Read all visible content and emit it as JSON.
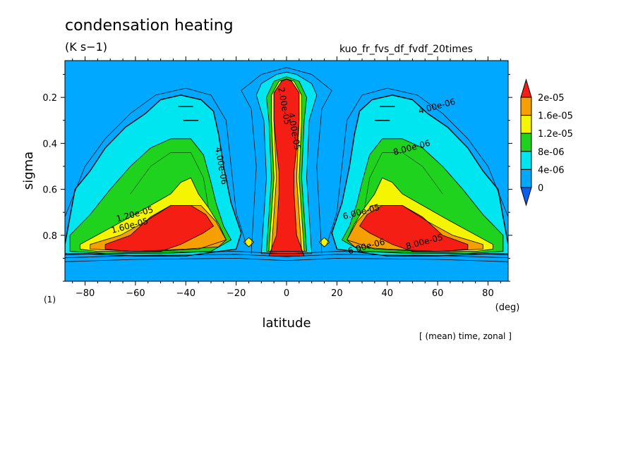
{
  "header": {
    "title": "condensation heating",
    "units": "(K s−1)",
    "run_name": "kuo_fr_fvs_df_fvdf_20times"
  },
  "footer": {
    "panel_number": "(1)",
    "note": "[ (mean) time, zonal ]"
  },
  "colors": {
    "level_0": "#0a5ff0",
    "level_1": "#00a8ff",
    "level_2": "#00e6f0",
    "level_3": "#1ed21e",
    "level_4": "#f5f500",
    "level_5": "#f5a000",
    "level_6": "#f51e14"
  },
  "chart_data": {
    "type": "heatmap",
    "xlabel": "latitude",
    "x_unit": "(deg)",
    "ylabel": "sigma",
    "xlim": [
      -88,
      88
    ],
    "ylim": [
      1.0,
      0.04
    ],
    "x_ticks": [
      -80,
      -60,
      -40,
      -20,
      0,
      20,
      40,
      60,
      80
    ],
    "x_tick_labels": [
      "−80",
      "−60",
      "−40",
      "−20",
      "0",
      "20",
      "40",
      "60",
      "80"
    ],
    "y_ticks": [
      0.2,
      0.4,
      0.6,
      0.8
    ],
    "y_tick_labels": [
      "0.2",
      "0.4",
      "0.6",
      "0.8"
    ],
    "colorbar": {
      "levels": [
        "0",
        "4e-06",
        "8e-06",
        "1.2e-05",
        "1.6e-05",
        "2e-05"
      ],
      "level_values": [
        0,
        4e-06,
        8e-06,
        1.2e-05,
        1.6e-05,
        2e-05
      ]
    },
    "contour_labels": [
      {
        "text": "4.00e-06",
        "x": 60,
        "y": 0.25
      },
      {
        "text": "8.00e-06",
        "x": 50,
        "y": 0.43
      },
      {
        "text": "4.00e-06",
        "x": -27,
        "y": 0.5
      },
      {
        "text": "1.20e-05",
        "x": -60,
        "y": 0.72
      },
      {
        "text": "1.60e-05",
        "x": -62,
        "y": 0.77
      },
      {
        "text": "6.00e-05",
        "x": 30,
        "y": 0.71
      },
      {
        "text": "8.00e-05",
        "x": 55,
        "y": 0.84
      },
      {
        "text": "6.00e-06",
        "x": 32,
        "y": 0.86
      },
      {
        "text": "2.00e-05",
        "x": -2,
        "y": 0.24
      },
      {
        "text": "4.00e-05",
        "x": 2,
        "y": 0.35
      }
    ]
  }
}
